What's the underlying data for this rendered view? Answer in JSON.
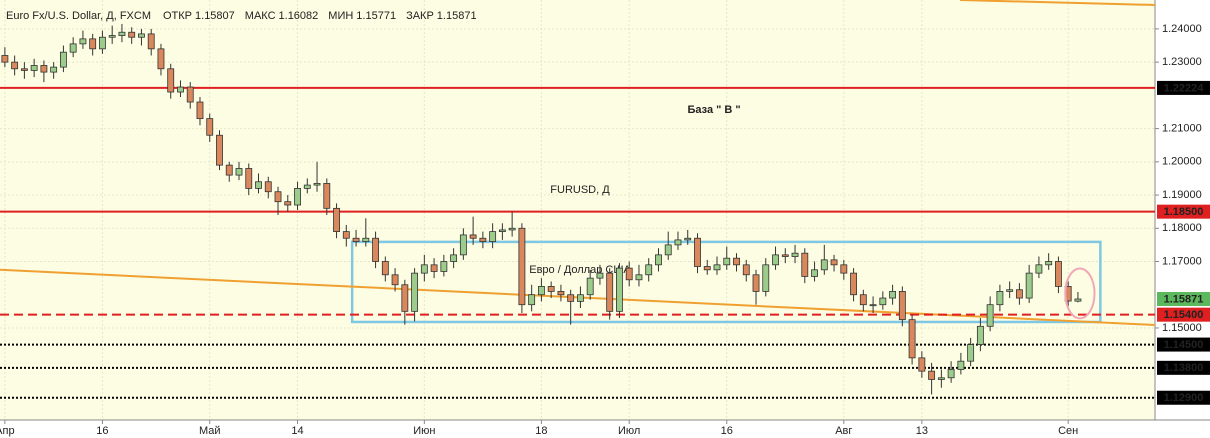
{
  "chart_data": {
    "type": "candlestick",
    "title": "Euro Fx/U.S. Dollar, Д, FXCM",
    "ohlc_header": [
      {
        "name": "ОТКР",
        "value": 1.15807
      },
      {
        "name": "МАКС",
        "value": 1.16082
      },
      {
        "name": "МИН",
        "value": 1.15771
      },
      {
        "name": "ЗАКР",
        "value": 1.15871
      }
    ],
    "watermark": "FURUSD, Д",
    "watermark_subtitle": "Евро / Доллар США",
    "categories": [
      "Апр",
      null,
      null,
      null,
      null,
      null,
      null,
      null,
      null,
      null,
      "16",
      null,
      null,
      null,
      null,
      null,
      null,
      null,
      null,
      null,
      null,
      "Май",
      null,
      null,
      null,
      null,
      null,
      null,
      null,
      null,
      "14",
      null,
      null,
      null,
      null,
      null,
      null,
      null,
      null,
      null,
      null,
      null,
      null,
      "Июн",
      null,
      null,
      null,
      null,
      null,
      null,
      null,
      null,
      null,
      null,
      null,
      "18",
      null,
      null,
      null,
      null,
      null,
      null,
      null,
      null,
      "Июл",
      null,
      null,
      null,
      null,
      null,
      null,
      null,
      null,
      null,
      "16",
      null,
      null,
      null,
      null,
      null,
      null,
      null,
      null,
      null,
      null,
      null,
      "Авг",
      null,
      null,
      null,
      null,
      null,
      null,
      null,
      "13",
      null,
      null,
      null,
      null,
      null,
      null,
      null,
      null,
      null,
      null,
      null,
      null,
      null,
      null,
      "Сен",
      null
    ],
    "open": [
      1.232,
      1.23,
      1.228,
      1.2275,
      1.229,
      1.227,
      1.2285,
      1.233,
      1.2355,
      1.237,
      1.234,
      1.2375,
      1.238,
      1.239,
      1.2375,
      1.2385,
      1.234,
      1.228,
      1.221,
      1.2225,
      1.218,
      1.213,
      1.208,
      1.199,
      1.196,
      1.198,
      1.192,
      1.194,
      1.191,
      1.188,
      1.187,
      1.192,
      1.193,
      1.1935,
      1.186,
      1.179,
      1.177,
      1.176,
      1.177,
      1.17,
      1.166,
      1.163,
      1.155,
      1.1665,
      1.169,
      1.167,
      1.17,
      1.172,
      1.178,
      1.177,
      1.176,
      1.179,
      1.1795,
      1.18,
      1.157,
      1.16,
      1.1625,
      1.161,
      1.16,
      1.158,
      1.16,
      1.165,
      1.1665,
      1.155,
      1.168,
      1.1645,
      1.166,
      1.169,
      1.172,
      1.175,
      1.1765,
      1.177,
      1.1685,
      1.1675,
      1.169,
      1.171,
      1.169,
      1.166,
      1.161,
      1.169,
      1.172,
      1.1715,
      1.1725,
      1.1655,
      1.1675,
      1.1705,
      1.169,
      1.1665,
      1.16,
      1.157,
      1.157,
      1.159,
      1.161,
      1.1525,
      1.141,
      1.137,
      1.1345,
      1.135,
      1.1375,
      1.14,
      1.145,
      1.1505,
      1.157,
      1.161,
      1.1615,
      1.159,
      1.1665,
      1.169,
      1.17,
      1.1625,
      1.15807
    ],
    "high": [
      1.2345,
      1.232,
      1.23,
      1.231,
      1.2305,
      1.23,
      1.235,
      1.2375,
      1.2395,
      1.2385,
      1.2395,
      1.241,
      1.2415,
      1.2405,
      1.24,
      1.24,
      1.2355,
      1.2295,
      1.2245,
      1.224,
      1.2195,
      1.2145,
      1.2095,
      1.2,
      1.2,
      1.1995,
      1.1965,
      1.1955,
      1.1925,
      1.19,
      1.194,
      1.195,
      1.2,
      1.195,
      1.1875,
      1.181,
      1.1795,
      1.183,
      1.179,
      1.1715,
      1.168,
      1.1645,
      1.168,
      1.172,
      1.171,
      1.172,
      1.174,
      1.18,
      1.1835,
      1.179,
      1.1815,
      1.1815,
      1.185,
      1.1815,
      1.163,
      1.165,
      1.164,
      1.163,
      1.1615,
      1.1625,
      1.1675,
      1.169,
      1.168,
      1.1695,
      1.17,
      1.169,
      1.171,
      1.174,
      1.179,
      1.179,
      1.1795,
      1.1785,
      1.1705,
      1.1715,
      1.1745,
      1.1725,
      1.1705,
      1.1675,
      1.171,
      1.1745,
      1.174,
      1.175,
      1.174,
      1.17,
      1.175,
      1.172,
      1.1705,
      1.168,
      1.1615,
      1.1595,
      1.161,
      1.163,
      1.1625,
      1.154,
      1.143,
      1.1395,
      1.1375,
      1.14,
      1.1425,
      1.147,
      1.153,
      1.1595,
      1.163,
      1.164,
      1.1635,
      1.169,
      1.1715,
      1.1725,
      1.1715,
      1.164,
      1.16082
    ],
    "low": [
      1.2285,
      1.226,
      1.225,
      1.2255,
      1.224,
      1.225,
      1.227,
      1.2315,
      1.234,
      1.232,
      1.2325,
      1.2355,
      1.236,
      1.2355,
      1.235,
      1.232,
      1.226,
      1.219,
      1.2195,
      1.216,
      1.211,
      1.206,
      1.1975,
      1.194,
      1.1945,
      1.19,
      1.1905,
      1.189,
      1.184,
      1.185,
      1.1855,
      1.1905,
      1.191,
      1.184,
      1.177,
      1.1745,
      1.1745,
      1.1745,
      1.168,
      1.164,
      1.161,
      1.151,
      1.152,
      1.164,
      1.165,
      1.1655,
      1.168,
      1.1705,
      1.175,
      1.174,
      1.174,
      1.1765,
      1.1775,
      1.1545,
      1.155,
      1.158,
      1.159,
      1.158,
      1.151,
      1.156,
      1.1585,
      1.163,
      1.1525,
      1.153,
      1.1625,
      1.1625,
      1.164,
      1.167,
      1.1705,
      1.1735,
      1.175,
      1.1665,
      1.166,
      1.166,
      1.1675,
      1.167,
      1.164,
      1.157,
      1.1595,
      1.1675,
      1.1695,
      1.1695,
      1.1635,
      1.164,
      1.166,
      1.167,
      1.1645,
      1.158,
      1.155,
      1.1545,
      1.1555,
      1.157,
      1.1505,
      1.139,
      1.135,
      1.13,
      1.132,
      1.1335,
      1.136,
      1.1385,
      1.143,
      1.149,
      1.155,
      1.159,
      1.157,
      1.1575,
      1.165,
      1.1675,
      1.1605,
      1.1565,
      1.15771
    ],
    "close": [
      1.23,
      1.228,
      1.2275,
      1.229,
      1.227,
      1.2285,
      1.233,
      1.2355,
      1.237,
      1.234,
      1.2375,
      1.238,
      1.239,
      1.2375,
      1.2385,
      1.234,
      1.228,
      1.221,
      1.2225,
      1.218,
      1.213,
      1.208,
      1.199,
      1.196,
      1.198,
      1.192,
      1.194,
      1.191,
      1.188,
      1.187,
      1.192,
      1.193,
      1.1935,
      1.186,
      1.179,
      1.177,
      1.176,
      1.177,
      1.17,
      1.166,
      1.163,
      1.155,
      1.1665,
      1.169,
      1.167,
      1.17,
      1.172,
      1.178,
      1.177,
      1.176,
      1.179,
      1.1795,
      1.18,
      1.157,
      1.16,
      1.1625,
      1.161,
      1.16,
      1.158,
      1.16,
      1.165,
      1.1665,
      1.155,
      1.168,
      1.1645,
      1.166,
      1.169,
      1.172,
      1.175,
      1.1765,
      1.177,
      1.1685,
      1.1675,
      1.169,
      1.171,
      1.169,
      1.166,
      1.161,
      1.169,
      1.172,
      1.1715,
      1.1725,
      1.1655,
      1.1675,
      1.1705,
      1.169,
      1.1665,
      1.16,
      1.157,
      1.157,
      1.159,
      1.161,
      1.1525,
      1.141,
      1.137,
      1.1345,
      1.135,
      1.1375,
      1.14,
      1.145,
      1.1505,
      1.157,
      1.161,
      1.1615,
      1.159,
      1.1665,
      1.169,
      1.17,
      1.1625,
      1.1581,
      1.15871
    ],
    "up_color": "#9ccc8c",
    "down_color": "#d9875c",
    "candle_outline": "#333333",
    "last_price_color": "#5cb85c",
    "xlim": [
      -0.5,
      117.9
    ],
    "ylim": [
      1.1223,
      1.2487
    ],
    "yticks": [
      {
        "value": 1.24,
        "label": "1.24000"
      },
      {
        "value": 1.23,
        "label": "1.23000"
      },
      {
        "value": 1.21,
        "label": "1.21000"
      },
      {
        "value": 1.2,
        "label": "1.20000"
      },
      {
        "value": 1.19,
        "label": "1.19000"
      },
      {
        "value": 1.18,
        "label": "1.18000"
      },
      {
        "value": 1.17,
        "label": "1.17000"
      },
      {
        "value": 1.15,
        "label": "1.15000"
      }
    ],
    "grid": true,
    "levels": [
      {
        "value": 1.22224,
        "color": "#e02020",
        "style": "solid",
        "label_color": "#000000"
      },
      {
        "value": 1.185,
        "label": "1.18500",
        "color": "#e02020",
        "style": "solid",
        "label_color": "#e02020"
      },
      {
        "value": 1.154,
        "label": "1.15400",
        "color": "#e02020",
        "style": "dashed",
        "label_color": "#e02020"
      },
      {
        "value": 1.145,
        "label": "1.14500",
        "color": "#000000",
        "style": "dotted",
        "label_color": "#000000"
      },
      {
        "value": 1.138,
        "label": "1.13800",
        "color": "#000000",
        "style": "dotted",
        "label_color": "#000000"
      },
      {
        "value": 1.129,
        "label": "1.12900",
        "color": "#000000",
        "style": "dotted",
        "label_color": "#000000"
      }
    ],
    "trendlines": [
      {
        "color": "#f0a030",
        "points": [
          [
            -0.5,
            1.1675
          ],
          [
            117.9,
            1.1509
          ]
        ]
      },
      {
        "color": "#f0a030",
        "points": [
          [
            97.9,
            1.2487
          ],
          [
            117.9,
            1.2472
          ]
        ]
      }
    ],
    "range_box": {
      "x": [
        35.6,
        112.3
      ],
      "y": [
        1.1518,
        1.1759
      ],
      "color": "#7ec8e3"
    },
    "marker_ellipse": {
      "x": 110.2,
      "y": 1.1604,
      "rx": 1.5,
      "ry": 0.0075,
      "color": "#f0a8b8"
    },
    "annotation": {
      "text": "База \" В \"",
      "x": 72.7,
      "y": 1.2155
    }
  }
}
